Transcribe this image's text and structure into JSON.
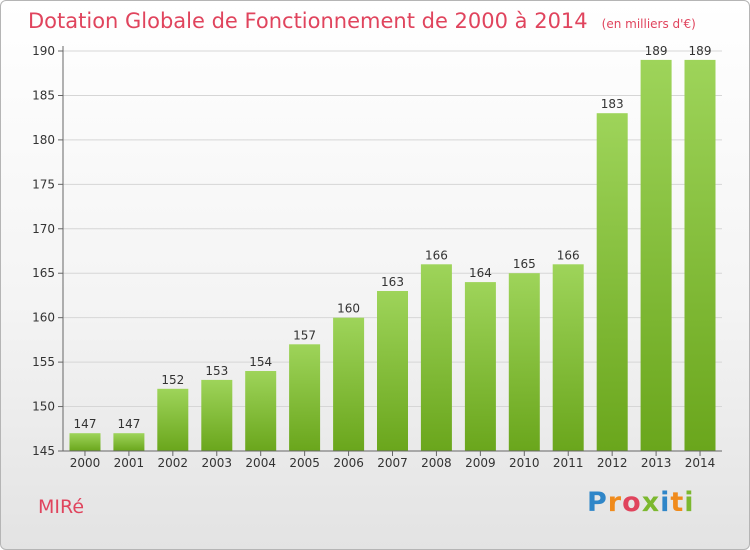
{
  "header": {
    "title": "Dotation Globale de Fonctionnement de 2000 à 2014",
    "subtitle": "(en milliers d'€)"
  },
  "footer": {
    "commune": "MIRé"
  },
  "logo": {
    "text": "Proxiti",
    "letter_colors": [
      "#2f86c8",
      "#f08b1c",
      "#e0445d",
      "#7cb82f",
      "#2f86c8",
      "#f08b1c",
      "#7cb82f"
    ]
  },
  "colors": {
    "bar_top": "#9ed45a",
    "bar_bottom": "#6aa61c",
    "accent": "#e0445d",
    "grid": "#d6d6d6"
  },
  "chart_data": {
    "type": "bar",
    "categories": [
      "2000",
      "2001",
      "2002",
      "2003",
      "2004",
      "2005",
      "2006",
      "2007",
      "2008",
      "2009",
      "2010",
      "2011",
      "2012",
      "2013",
      "2014"
    ],
    "values": [
      147,
      147,
      152,
      153,
      154,
      157,
      160,
      163,
      166,
      164,
      165,
      166,
      183,
      189,
      189
    ],
    "title": "Dotation Globale de Fonctionnement de 2000 à 2014",
    "subtitle": "(en milliers d'€)",
    "xlabel": "",
    "ylabel": "",
    "ylim": [
      145,
      190
    ],
    "yticks": [
      145,
      150,
      155,
      160,
      165,
      170,
      175,
      180,
      185,
      190
    ],
    "grid": true,
    "data_labels": true
  }
}
